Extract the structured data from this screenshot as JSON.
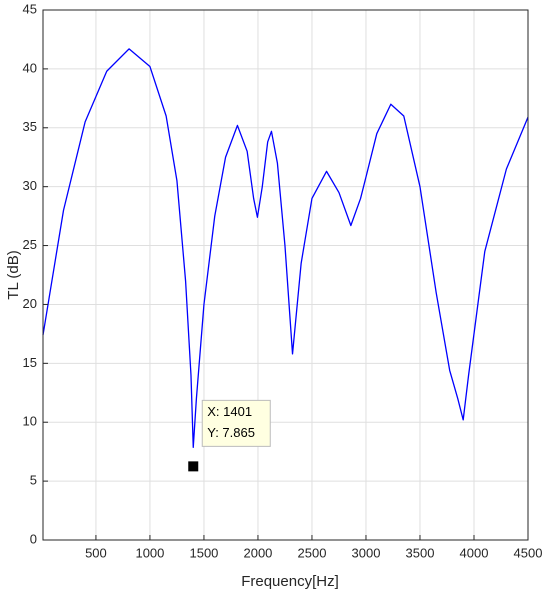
{
  "chart_data": {
    "type": "line",
    "xlabel": "Frequency[Hz]",
    "ylabel": "TL (dB)",
    "xlim": [
      10,
      4500
    ],
    "xticks": [
      500,
      1000,
      1500,
      2000,
      2500,
      3000,
      3500,
      4000,
      4500
    ],
    "ylim": [
      0,
      45
    ],
    "yticks": [
      0,
      5,
      10,
      15,
      20,
      25,
      30,
      35,
      40,
      45
    ],
    "grid": true,
    "series": [
      {
        "color": "#0000ff",
        "x": [
          10,
          200,
          400,
          600,
          807,
          1000,
          1150,
          1250,
          1330,
          1380,
          1401,
          1430,
          1500,
          1600,
          1700,
          1810,
          1900,
          1960,
          1995,
          2040,
          2090,
          2125,
          2180,
          2250,
          2320,
          2400,
          2500,
          2635,
          2750,
          2860,
          2950,
          3005,
          3100,
          3230,
          3350,
          3500,
          3650,
          3775,
          3850,
          3900,
          3950,
          4100,
          4300,
          4500
        ],
        "values": [
          17.4,
          28,
          35.5,
          39.8,
          41.7,
          40.2,
          36,
          30.5,
          22,
          14,
          7.865,
          12,
          20,
          27.5,
          32.5,
          35.2,
          33,
          29,
          27.4,
          30,
          33.8,
          34.7,
          32,
          25,
          15.8,
          23.5,
          29,
          31.3,
          29.5,
          26.7,
          29,
          31,
          34.5,
          37,
          36,
          30,
          21,
          14.4,
          12,
          10.2,
          14,
          24.5,
          31.5,
          35.9
        ]
      }
    ],
    "datatip": {
      "x": 1401,
      "y": 7.865,
      "labels": [
        "X: 1401",
        "Y: 7.865"
      ]
    }
  }
}
